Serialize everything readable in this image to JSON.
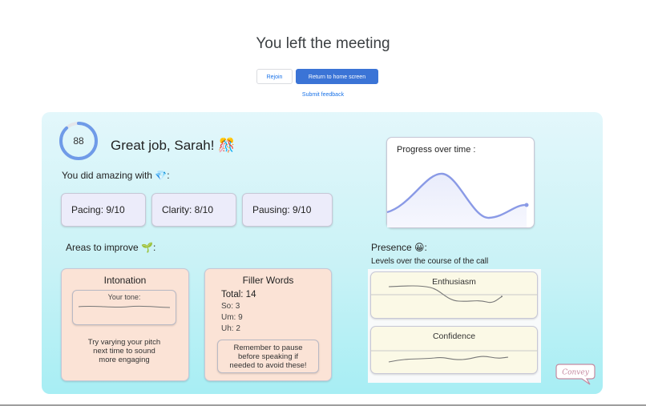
{
  "header": {
    "title": "You left the meeting",
    "rejoin_label": "Rejoin",
    "home_label": "Return to home screen",
    "feedback_label": "Submit feedback"
  },
  "summary": {
    "score": "88",
    "score_fraction": 0.88,
    "greeting": "Great job, Sarah! 🎊",
    "did_amazing": "You did amazing with 💎:",
    "metrics": [
      {
        "label": "Pacing: 9/10"
      },
      {
        "label": "Clarity: 8/10"
      },
      {
        "label": "Pausing: 9/10"
      }
    ]
  },
  "progress": {
    "title": "Progress over time :"
  },
  "improve": {
    "label": "Areas to improve 🌱:",
    "intonation": {
      "title": "Intonation",
      "tone_label": "Your tone:",
      "tip_lines": [
        "Try varying your pitch",
        "next time to sound",
        "more engaging"
      ]
    },
    "filler": {
      "title": "Filler Words",
      "total": "Total: 14",
      "so": "So: 3",
      "um": "Um: 9",
      "uh": "Uh: 2",
      "reminder_lines": [
        "Remember to pause",
        "before speaking if",
        "needed to avoid these!"
      ]
    }
  },
  "presence": {
    "label": "Presence 😀:",
    "subtitle": "Levels over the course of the call",
    "enthusiasm": "Enthusiasm",
    "confidence": "Confidence"
  },
  "brand": {
    "logo_text": "Convey"
  },
  "colors": {
    "primary_button": "#3b74d6",
    "panel_gradient_top": "#e3f7fb",
    "panel_gradient_bottom": "#a7eef4",
    "metric_card": "#ececfa",
    "improve_card": "#fbe3d6",
    "presence_card": "#fbf9e6",
    "score_ring": "#6f9be8",
    "progress_line": "#8a9ae6"
  }
}
